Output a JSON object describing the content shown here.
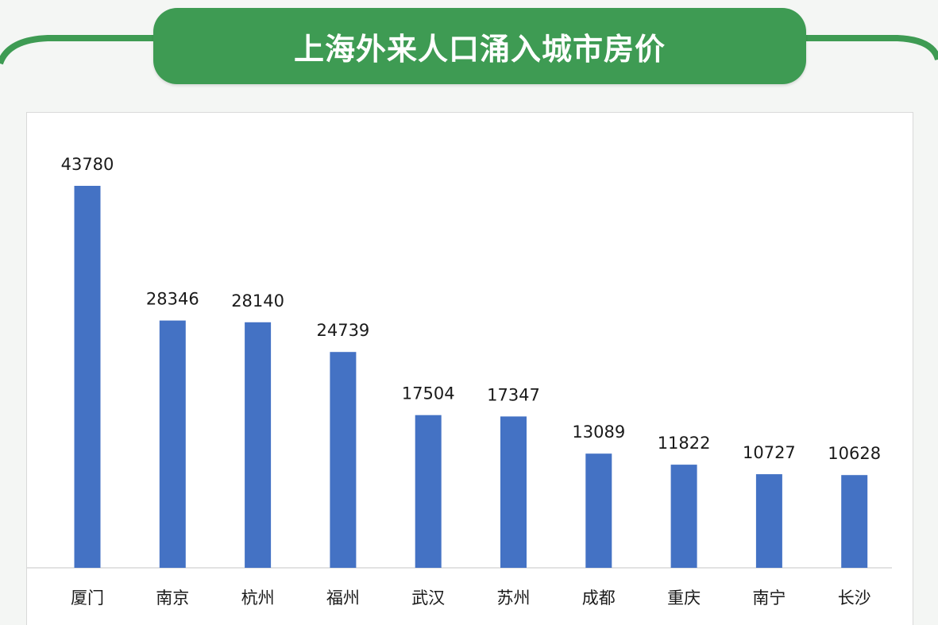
{
  "title": "上海外来人口涌入城市房价",
  "colors": {
    "header_green": "#3e9b53",
    "bar_blue": "#4472c4",
    "text_dark": "#1a1a1a"
  },
  "chart_data": {
    "type": "bar",
    "title": "上海外来人口涌入城市房价",
    "xlabel": "",
    "ylabel": "",
    "categories": [
      "厦门",
      "南京",
      "杭州",
      "福州",
      "武汉",
      "苏州",
      "成都",
      "重庆",
      "南宁",
      "长沙"
    ],
    "values": [
      43780,
      28346,
      28140,
      24739,
      17504,
      17347,
      13089,
      11822,
      10727,
      10628
    ],
    "ylim": [
      0,
      43780
    ],
    "grid": false,
    "legend": "none",
    "data_labels": true
  }
}
